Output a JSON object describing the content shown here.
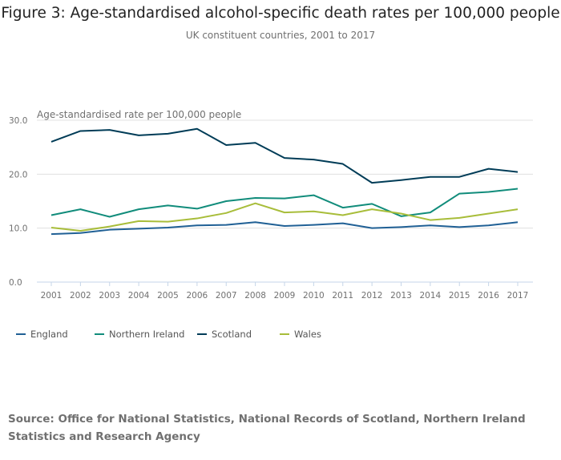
{
  "chart_data": {
    "type": "line",
    "title": "Figure 3: Age-standardised alcohol-specific death rates per 100,000 people",
    "subtitle": "UK constituent countries, 2001 to 2017",
    "ylabel": "Age-standardised rate per 100,000 people",
    "xlabel": "",
    "ylim": [
      0,
      30
    ],
    "yticks": [
      "0.0",
      "10.0",
      "20.0",
      "30.0"
    ],
    "grid": true,
    "legend": "bottom-left",
    "x": [
      "2001",
      "2002",
      "2003",
      "2004",
      "2005",
      "2006",
      "2007",
      "2008",
      "2009",
      "2010",
      "2011",
      "2012",
      "2013",
      "2014",
      "2015",
      "2016",
      "2017"
    ],
    "series": [
      {
        "name": "England",
        "color": "#206095",
        "values": [
          8.9,
          9.1,
          9.7,
          9.9,
          10.1,
          10.5,
          10.6,
          11.1,
          10.4,
          10.6,
          10.9,
          10.0,
          10.2,
          10.5,
          10.2,
          10.5,
          11.1
        ]
      },
      {
        "name": "Northern Ireland",
        "color": "#118c7b",
        "values": [
          12.4,
          13.5,
          12.1,
          13.5,
          14.2,
          13.6,
          15.0,
          15.6,
          15.5,
          16.1,
          13.8,
          14.5,
          12.2,
          12.9,
          16.4,
          16.7,
          17.3
        ]
      },
      {
        "name": "Scotland",
        "color": "#003c57",
        "values": [
          26.0,
          28.0,
          28.2,
          27.2,
          27.5,
          28.4,
          25.4,
          25.8,
          23.0,
          22.7,
          21.9,
          18.4,
          18.9,
          19.5,
          19.5,
          21.0,
          20.4
        ]
      },
      {
        "name": "Wales",
        "color": "#a8bd3a",
        "values": [
          10.1,
          9.5,
          10.3,
          11.3,
          11.2,
          11.8,
          12.8,
          14.6,
          12.9,
          13.1,
          12.4,
          13.5,
          12.7,
          11.5,
          11.9,
          12.7,
          13.5
        ]
      }
    ]
  },
  "source": "Source: Office for National Statistics, National Records of Scotland, Northern Ireland Statistics and Research Agency"
}
